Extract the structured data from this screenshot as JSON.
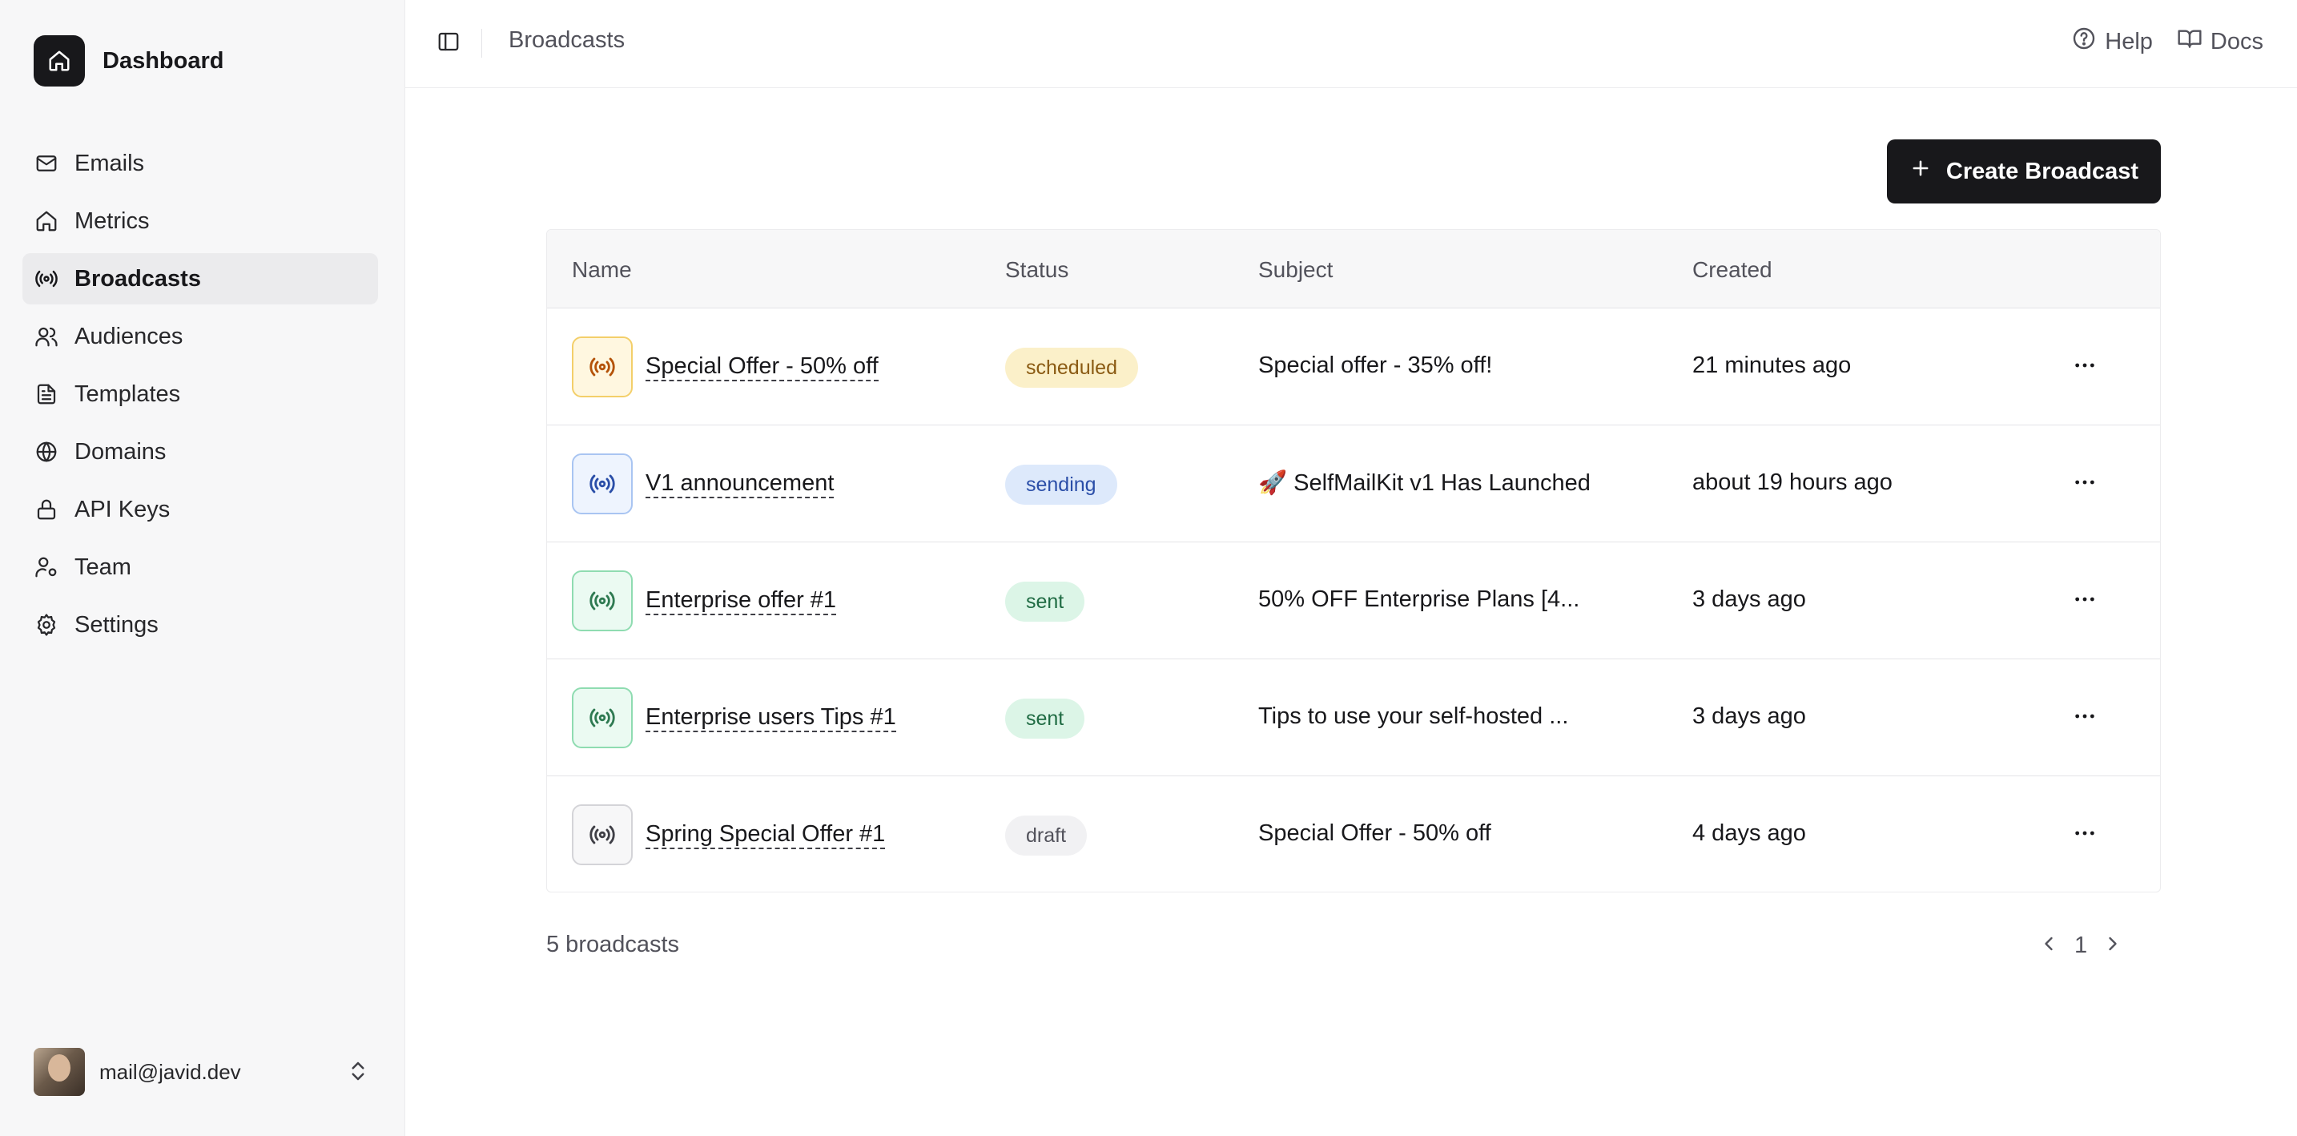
{
  "sidebar": {
    "brand": "Dashboard",
    "items": [
      {
        "label": "Emails",
        "icon": "mail-icon"
      },
      {
        "label": "Metrics",
        "icon": "home-icon"
      },
      {
        "label": "Broadcasts",
        "icon": "broadcast-icon",
        "active": true
      },
      {
        "label": "Audiences",
        "icon": "users-icon"
      },
      {
        "label": "Templates",
        "icon": "file-text-icon"
      },
      {
        "label": "Domains",
        "icon": "globe-icon"
      },
      {
        "label": "API Keys",
        "icon": "lock-icon"
      },
      {
        "label": "Team",
        "icon": "user-cog-icon"
      },
      {
        "label": "Settings",
        "icon": "gear-icon"
      }
    ],
    "user_email": "mail@javid.dev"
  },
  "header": {
    "breadcrumb": "Broadcasts",
    "help": "Help",
    "docs": "Docs"
  },
  "create_button": "Create Broadcast",
  "table": {
    "columns": [
      "Name",
      "Status",
      "Subject",
      "Created"
    ],
    "rows": [
      {
        "name": "Special Offer - 50% off",
        "status": "scheduled",
        "subject": "Special offer - 35% off!",
        "created": "21 minutes ago"
      },
      {
        "name": "V1 announcement",
        "status": "sending",
        "subject": "🚀 SelfMailKit v1 Has Launched",
        "created": "about 19 hours ago"
      },
      {
        "name": "Enterprise offer #1",
        "status": "sent",
        "subject": "50% OFF Enterprise Plans [4...",
        "created": "3 days ago"
      },
      {
        "name": "Enterprise users Tips #1",
        "status": "sent",
        "subject": "Tips to use your self-hosted ...",
        "created": "3 days ago"
      },
      {
        "name": "Spring Special Offer #1",
        "status": "draft",
        "subject": "Special Offer - 50% off",
        "created": "4 days ago"
      }
    ]
  },
  "footer": {
    "count": "5 broadcasts",
    "page": "1"
  },
  "status_colors": {
    "scheduled": {
      "bg": "#fbf0c9",
      "fg": "#8a5a12",
      "icon_bg": "#fff7e0",
      "icon_border": "#f3cf6a",
      "icon_fg": "#b45309"
    },
    "sending": {
      "bg": "#dde9fb",
      "fg": "#2a4ea8",
      "icon_bg": "#eef4fe",
      "icon_border": "#a9c5f2",
      "icon_fg": "#2a4ea8"
    },
    "sent": {
      "bg": "#dcf5e7",
      "fg": "#1f6b43",
      "icon_bg": "#ebfaf2",
      "icon_border": "#8fdcb1",
      "icon_fg": "#2f7a52"
    },
    "draft": {
      "bg": "#f1f1f3",
      "fg": "#52525b",
      "icon_bg": "#f7f7f8",
      "icon_border": "#d4d4d8",
      "icon_fg": "#3f3f46"
    }
  }
}
